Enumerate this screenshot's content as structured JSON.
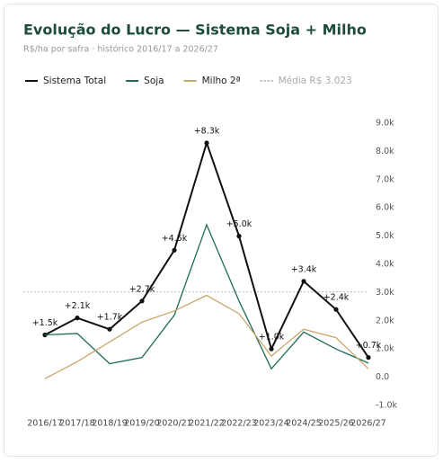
{
  "chart_data": {
    "type": "line",
    "title": "Evolução do Lucro — Sistema Soja + Milho",
    "subtitle": "R$/ha por safra · histórico 2016/17 a 2026/27",
    "categories": [
      "2016/17",
      "2017/18",
      "2018/19",
      "2019/20",
      "2020/21",
      "2021/22",
      "2022/23",
      "2023/24",
      "2024/25",
      "2025/26",
      "2026/27"
    ],
    "series": [
      {
        "name": "Sistema Total",
        "color": "#111111",
        "values": [
          1500,
          2100,
          1700,
          2700,
          4500,
          8300,
          5000,
          1000,
          3400,
          2400,
          700
        ],
        "value_labels": [
          "+1.5k",
          "+2.1k",
          "+1.7k",
          "+2.7k",
          "+4.5k",
          "+8.3k",
          "+5.0k",
          "+1.0k",
          "+3.4k",
          "+2.4k",
          "+0.7k"
        ]
      },
      {
        "name": "Soja",
        "color": "#1f6b55",
        "values": [
          1500,
          1550,
          480,
          700,
          2200,
          5400,
          2700,
          300,
          1600,
          1000,
          500
        ]
      },
      {
        "name": "Milho 2ª",
        "color": "#c9a66b",
        "values": [
          -50,
          550,
          1250,
          1950,
          2350,
          2900,
          2250,
          750,
          1700,
          1400,
          300
        ]
      }
    ],
    "average": {
      "label": "Média R$ 3.023",
      "value": 3023,
      "color": "#bbbbbb"
    },
    "ylim": [
      -1000,
      9000
    ],
    "yticks": [
      {
        "value": 9000,
        "label": "9.0k"
      },
      {
        "value": 8000,
        "label": "8.0k"
      },
      {
        "value": 7000,
        "label": "7.0k"
      },
      {
        "value": 6000,
        "label": "6.0k"
      },
      {
        "value": 5000,
        "label": "5.0k"
      },
      {
        "value": 4000,
        "label": "4.0k"
      },
      {
        "value": 3000,
        "label": "3.0k"
      },
      {
        "value": 2000,
        "label": "2.0k"
      },
      {
        "value": 1000,
        "label": "1.0k"
      },
      {
        "value": 0,
        "label": "0.0"
      },
      {
        "value": -1000,
        "label": "-1.0k"
      }
    ],
    "grid": false
  }
}
